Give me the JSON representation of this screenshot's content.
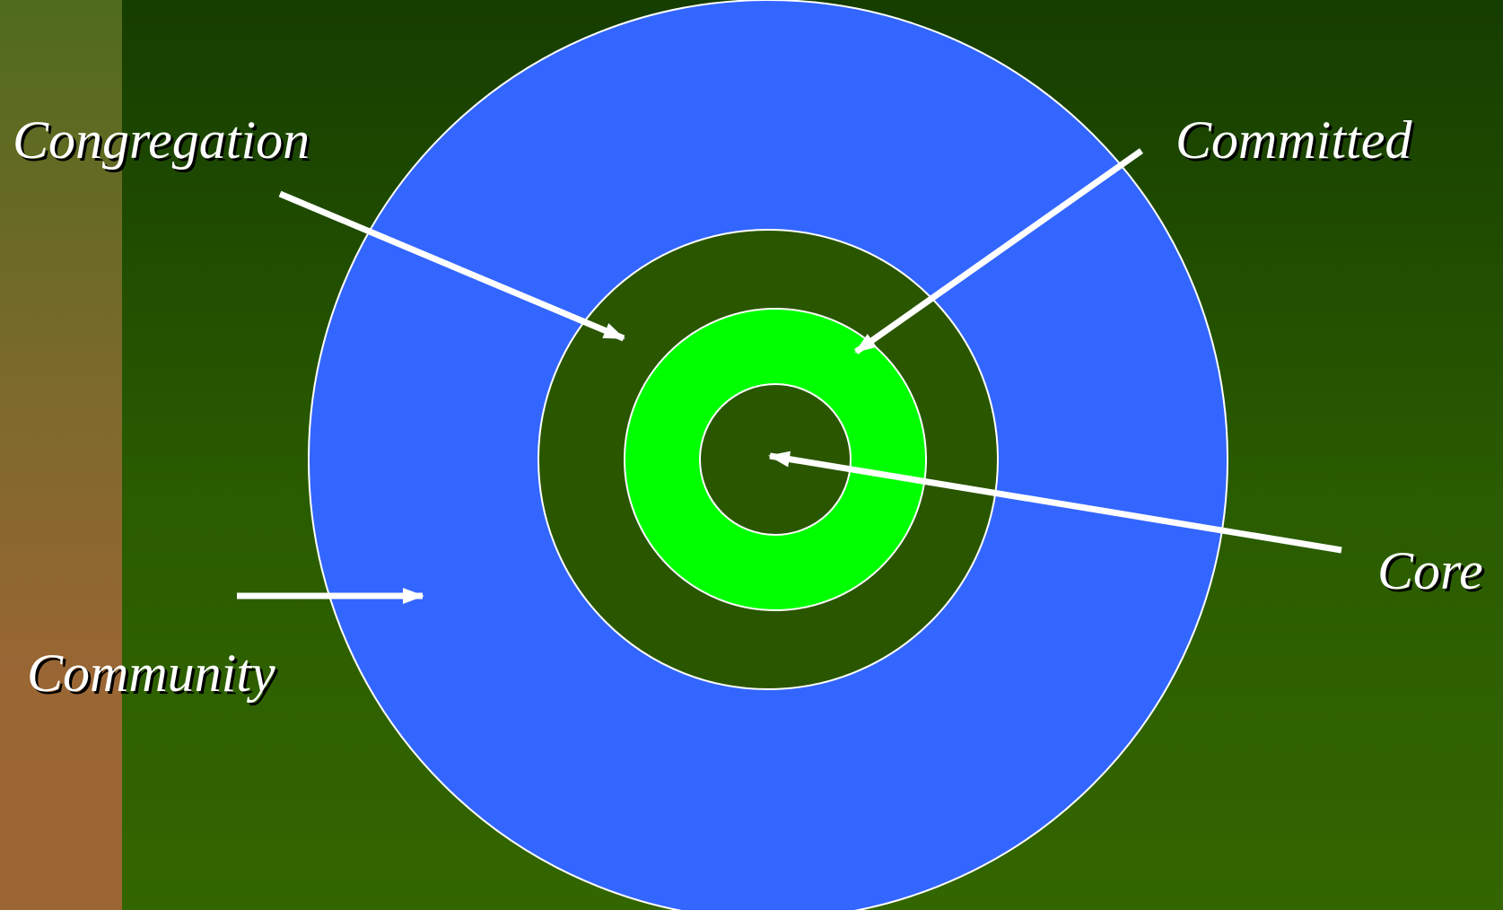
{
  "labels": {
    "congregation": "Congregation",
    "committed": "Committed",
    "core": "Core",
    "community": "Community"
  },
  "colors": {
    "background_top": "#163d00",
    "background_bottom": "#336600",
    "side_bar": "#9c6634",
    "community_ring": "#3366ff",
    "congregation_ring": "#2a5600",
    "committed_ring": "#00ff00",
    "core_circle": "#2a5600",
    "outline": "#ffffff",
    "arrow": "#ffffff",
    "label_text": "#ffffff"
  }
}
